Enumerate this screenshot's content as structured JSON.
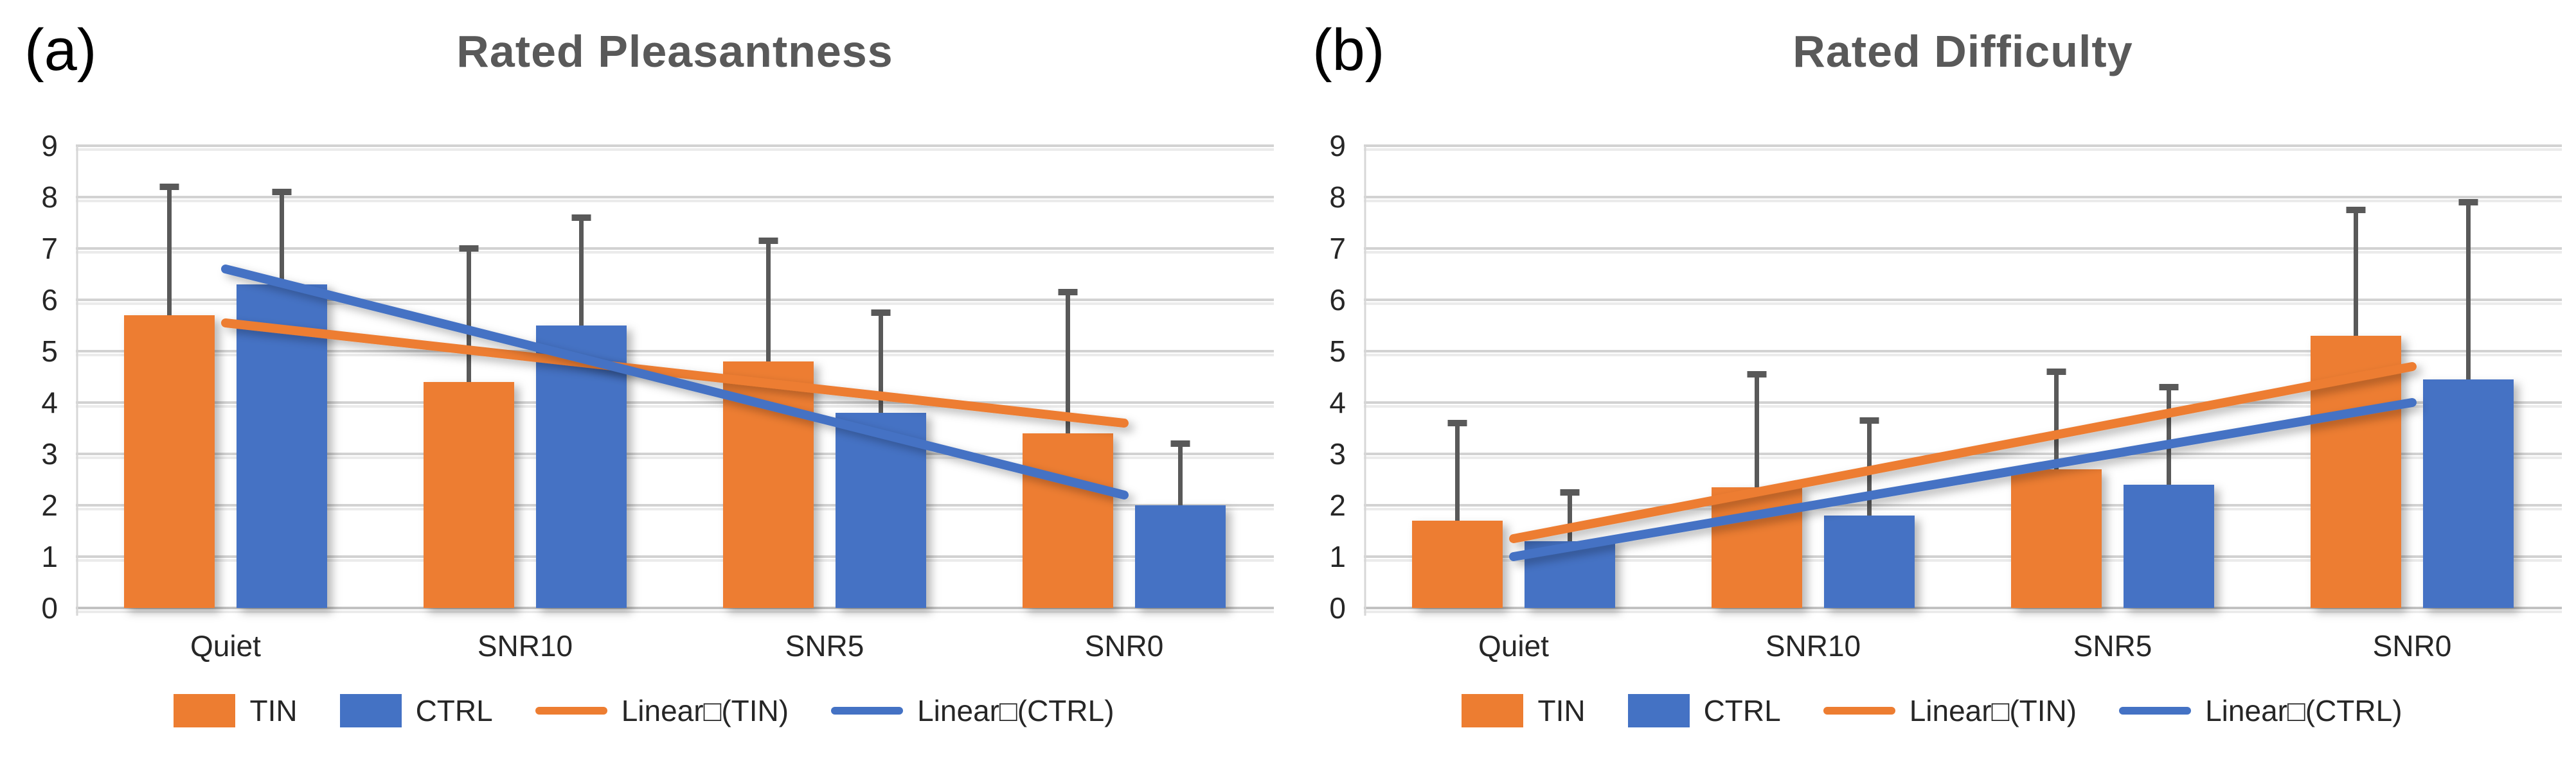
{
  "colors": {
    "tin": "#ED7D31",
    "ctrl": "#4472C4",
    "error_bar": "#595959",
    "gridline": "#D2D2D2",
    "gridline_shadow": "#EBEBEB",
    "axis_baseline": "#C2C2C2",
    "axis_line": "#D7D7D7",
    "title": "#595959",
    "text": "#262626"
  },
  "legend": {
    "items": [
      {
        "label": "TIN",
        "marker": "rect",
        "color": "#ED7D31"
      },
      {
        "label": "CTRL",
        "marker": "rect",
        "color": "#4472C4"
      },
      {
        "label": "Linear□(TIN)",
        "marker": "line",
        "color": "#ED7D31"
      },
      {
        "label": "Linear□(CTRL)",
        "marker": "line",
        "color": "#4472C4"
      }
    ]
  },
  "chart_data": [
    {
      "type": "bar",
      "panel_label": "(a)",
      "title": "Rated Pleasantness",
      "categories": [
        "Quiet",
        "SNR10",
        "SNR5",
        "SNR0"
      ],
      "yticks": [
        0,
        1,
        2,
        3,
        4,
        5,
        6,
        7,
        8,
        9
      ],
      "ylim": [
        0,
        9
      ],
      "grid": true,
      "legend_position": "bottom",
      "series": [
        {
          "name": "TIN",
          "color": "#ED7D31",
          "values": [
            5.7,
            4.4,
            4.8,
            3.4
          ],
          "error_top": [
            8.2,
            7.0,
            7.15,
            6.15
          ]
        },
        {
          "name": "CTRL",
          "color": "#4472C4",
          "values": [
            6.3,
            5.5,
            3.8,
            2.0
          ],
          "error_top": [
            8.1,
            7.6,
            5.75,
            3.2
          ]
        }
      ],
      "trendlines": [
        {
          "name": "Linear (TIN)",
          "color": "#ED7D31",
          "start": 5.55,
          "end": 3.6
        },
        {
          "name": "Linear (CTRL)",
          "color": "#4472C4",
          "start": 6.6,
          "end": 2.2
        }
      ]
    },
    {
      "type": "bar",
      "panel_label": "(b)",
      "title": "Rated Difficulty",
      "categories": [
        "Quiet",
        "SNR10",
        "SNR5",
        "SNR0"
      ],
      "yticks": [
        0,
        1,
        2,
        3,
        4,
        5,
        6,
        7,
        8,
        9
      ],
      "ylim": [
        0,
        9
      ],
      "grid": true,
      "legend_position": "bottom",
      "series": [
        {
          "name": "TIN",
          "color": "#ED7D31",
          "values": [
            1.7,
            2.35,
            2.7,
            5.3
          ],
          "error_top": [
            3.6,
            4.55,
            4.6,
            7.75
          ]
        },
        {
          "name": "CTRL",
          "color": "#4472C4",
          "values": [
            1.3,
            1.8,
            2.4,
            4.45
          ],
          "error_top": [
            2.25,
            3.65,
            4.3,
            7.9
          ]
        }
      ],
      "trendlines": [
        {
          "name": "Linear (TIN)",
          "color": "#ED7D31",
          "start": 1.35,
          "end": 4.7
        },
        {
          "name": "Linear (CTRL)",
          "color": "#4472C4",
          "start": 1.0,
          "end": 4.0
        }
      ]
    }
  ]
}
